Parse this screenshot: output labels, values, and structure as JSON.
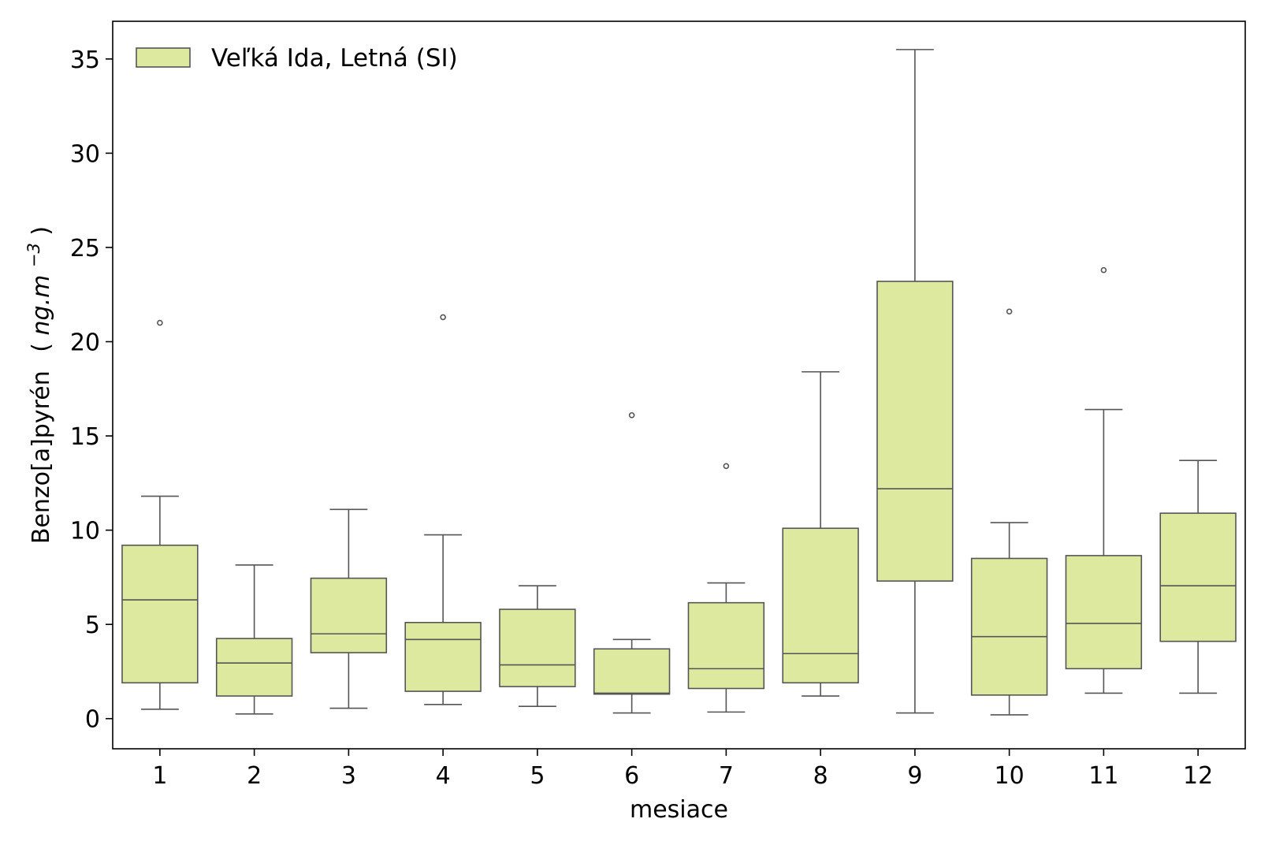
{
  "chart_data": {
    "type": "box",
    "xlabel": "mesiace",
    "ylabel": {
      "text": "Benzo[a]pyrén",
      "unit_prefix": "(",
      "unit_italic": "ng.m",
      "unit_sup": "−3",
      "unit_suffix": ")"
    },
    "ylim": [
      -1.6,
      37.0
    ],
    "yticks": [
      0,
      5,
      10,
      15,
      20,
      25,
      30,
      35
    ],
    "categories": [
      "1",
      "2",
      "3",
      "4",
      "5",
      "6",
      "7",
      "8",
      "9",
      "10",
      "11",
      "12"
    ],
    "series": [
      {
        "name": "Veľká Ida, Letná (SI)",
        "boxes": [
          {
            "category": "1",
            "whisker_low": 0.5,
            "q1": 1.9,
            "median": 6.3,
            "q3": 9.2,
            "whisker_high": 11.8,
            "outliers": [
              21.0
            ]
          },
          {
            "category": "2",
            "whisker_low": 0.25,
            "q1": 1.2,
            "median": 2.95,
            "q3": 4.25,
            "whisker_high": 8.15,
            "outliers": []
          },
          {
            "category": "3",
            "whisker_low": 0.55,
            "q1": 3.5,
            "median": 4.5,
            "q3": 7.45,
            "whisker_high": 11.1,
            "outliers": []
          },
          {
            "category": "4",
            "whisker_low": 0.75,
            "q1": 1.45,
            "median": 4.2,
            "q3": 5.1,
            "whisker_high": 9.75,
            "outliers": [
              21.3
            ]
          },
          {
            "category": "5",
            "whisker_low": 0.65,
            "q1": 1.7,
            "median": 2.85,
            "q3": 5.8,
            "whisker_high": 7.05,
            "outliers": []
          },
          {
            "category": "6",
            "whisker_low": 0.3,
            "q1": 1.3,
            "median": 1.35,
            "q3": 3.7,
            "whisker_high": 4.2,
            "outliers": [
              16.1
            ]
          },
          {
            "category": "7",
            "whisker_low": 0.35,
            "q1": 1.6,
            "median": 2.65,
            "q3": 6.15,
            "whisker_high": 7.2,
            "outliers": [
              13.4
            ]
          },
          {
            "category": "8",
            "whisker_low": 1.2,
            "q1": 1.9,
            "median": 3.45,
            "q3": 10.1,
            "whisker_high": 18.4,
            "outliers": []
          },
          {
            "category": "9",
            "whisker_low": 0.3,
            "q1": 7.3,
            "median": 12.2,
            "q3": 23.2,
            "whisker_high": 35.5,
            "outliers": []
          },
          {
            "category": "10",
            "whisker_low": 0.2,
            "q1": 1.25,
            "median": 4.35,
            "q3": 8.5,
            "whisker_high": 10.4,
            "outliers": [
              21.6
            ]
          },
          {
            "category": "11",
            "whisker_low": 1.35,
            "q1": 2.65,
            "median": 5.05,
            "q3": 8.65,
            "whisker_high": 16.4,
            "outliers": [
              23.8
            ]
          },
          {
            "category": "12",
            "whisker_low": 1.35,
            "q1": 4.1,
            "median": 7.05,
            "q3": 10.9,
            "whisker_high": 13.7,
            "outliers": []
          }
        ]
      }
    ],
    "legend": {
      "label": "Veľká Ida, Letná (SI)",
      "placement": "top-left"
    },
    "colors": {
      "box_fill": "#dde99f",
      "line": "#555555",
      "frame": "#000000"
    },
    "grid": false
  }
}
